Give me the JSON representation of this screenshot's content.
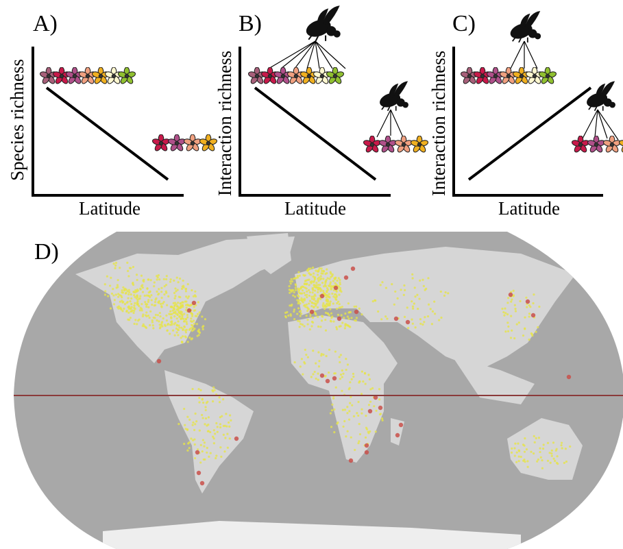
{
  "panels": [
    {
      "label": "A)",
      "y_label": "Species richness",
      "x_label": "Latitude"
    },
    {
      "label": "B)",
      "y_label": "Interaction richness",
      "x_label": "Latitude"
    },
    {
      "label": "C)",
      "y_label": "Interaction richness",
      "x_label": "Latitude"
    }
  ],
  "map": {
    "label": "D)"
  }
}
